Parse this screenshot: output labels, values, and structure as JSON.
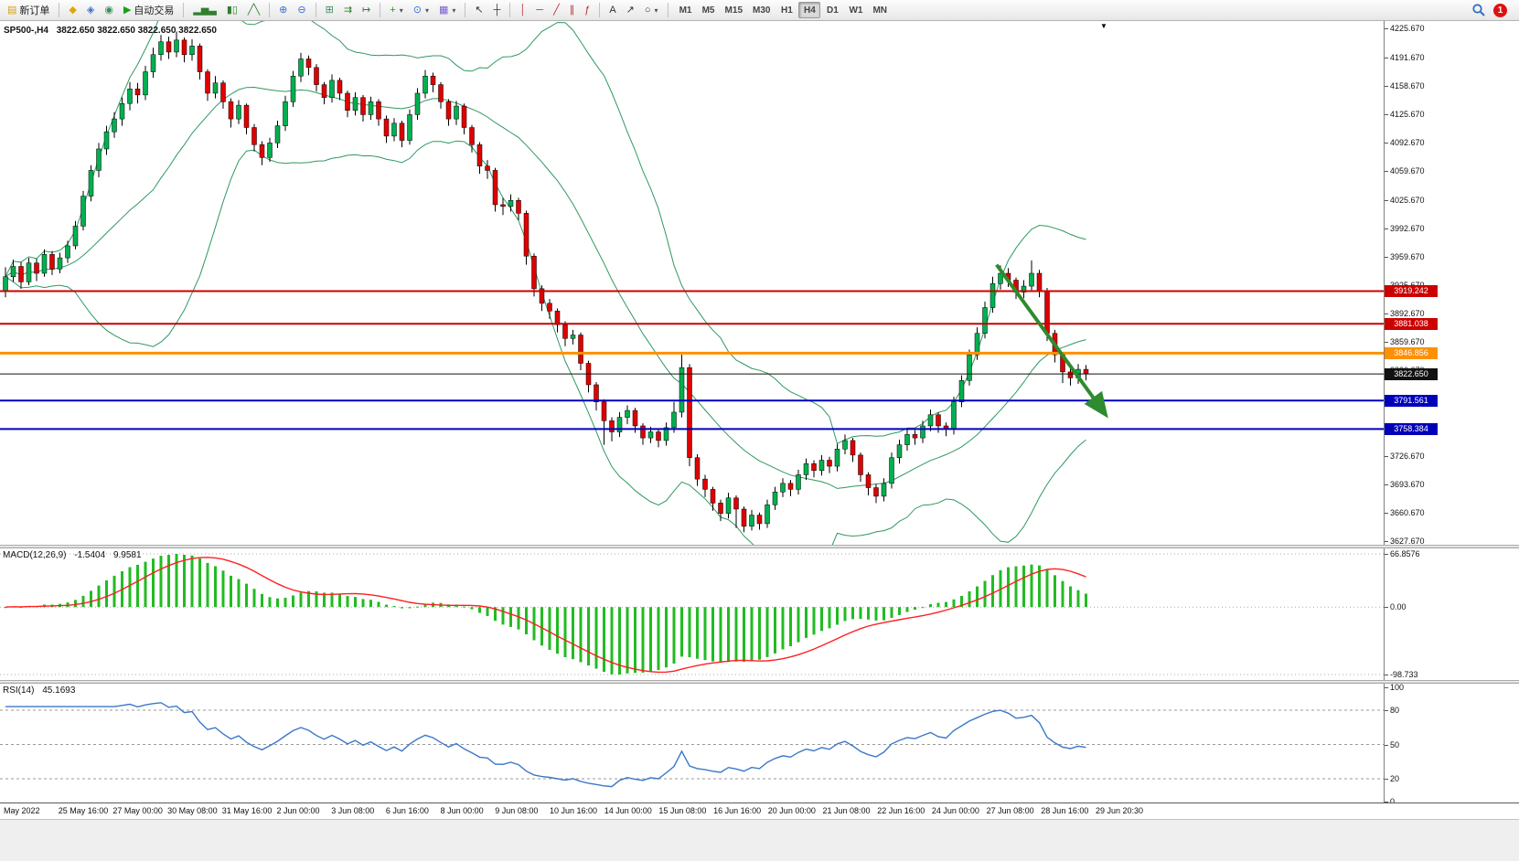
{
  "toolbar": {
    "items": [
      {
        "kind": "labeled",
        "name": "new-order-button",
        "icon_name": "new-order-icon",
        "glyph": "▤",
        "glyph_color": "#d8a018",
        "label": "新订单"
      },
      {
        "kind": "sep"
      },
      {
        "kind": "icon",
        "name": "market-watch-button",
        "icon_name": "market-watch-icon",
        "glyph": "◆",
        "glyph_color": "#e0a800"
      },
      {
        "kind": "icon",
        "name": "data-window-button",
        "icon_name": "data-window-icon",
        "glyph": "◈",
        "glyph_color": "#3a6fd0"
      },
      {
        "kind": "icon",
        "name": "navigator-button",
        "icon_name": "globe-icon",
        "glyph": "◉",
        "glyph_color": "#3a8f5f"
      },
      {
        "kind": "labeled",
        "name": "autotrading-button",
        "icon_name": "autotrading-play-icon",
        "glyph": "▶",
        "glyph_color": "#18a018",
        "label": "自动交易"
      },
      {
        "kind": "sep"
      },
      {
        "kind": "icon",
        "name": "bar-chart-button",
        "icon_name": "bars-icon",
        "glyph": "▂▅▃",
        "glyph_color": "#2f7f2f"
      },
      {
        "kind": "icon",
        "name": "candlestick-chart-button",
        "icon_name": "candles-icon",
        "glyph": "▮▯",
        "glyph_color": "#2f7f2f"
      },
      {
        "kind": "icon",
        "name": "line-chart-button",
        "icon_name": "line-chart-icon",
        "glyph": "╱╲",
        "glyph_color": "#2f7f2f"
      },
      {
        "kind": "sep"
      },
      {
        "kind": "icon",
        "name": "zoom-in-button",
        "icon_name": "zoom-in-icon",
        "glyph": "⊕",
        "glyph_color": "#3a6fd0"
      },
      {
        "kind": "icon",
        "name": "zoom-out-button",
        "icon_name": "zoom-out-icon",
        "glyph": "⊖",
        "glyph_color": "#3a6fd0"
      },
      {
        "kind": "sep"
      },
      {
        "kind": "icon",
        "name": "tile-windows-button",
        "icon_name": "tile-windows-icon",
        "glyph": "⊞",
        "glyph_color": "#3a8f5f"
      },
      {
        "kind": "icon",
        "name": "auto-scroll-button",
        "icon_name": "auto-scroll-icon",
        "glyph": "⇉",
        "glyph_color": "#2f7f2f"
      },
      {
        "kind": "icon",
        "name": "chart-shift-button",
        "icon_name": "chart-shift-icon",
        "glyph": "↦",
        "glyph_color": "#2f7f2f"
      },
      {
        "kind": "sep"
      },
      {
        "kind": "dropdown",
        "name": "indicators-button",
        "icon_name": "indicators-plus-icon",
        "glyph": "+",
        "glyph_color": "#18a018"
      },
      {
        "kind": "dropdown",
        "name": "periods-button",
        "icon_name": "clock-icon",
        "glyph": "⊙",
        "glyph_color": "#3a6fd0"
      },
      {
        "kind": "dropdown",
        "name": "templates-button",
        "icon_name": "template-icon",
        "glyph": "▦",
        "glyph_color": "#7a5fd0"
      },
      {
        "kind": "sep"
      },
      {
        "kind": "icon",
        "name": "cursor-button",
        "icon_name": "cursor-icon",
        "glyph": "↖",
        "glyph_color": "#333333"
      },
      {
        "kind": "icon",
        "name": "crosshair-button",
        "icon_name": "crosshair-icon",
        "glyph": "┼",
        "glyph_color": "#333333"
      },
      {
        "kind": "sep"
      },
      {
        "kind": "icon",
        "name": "vertical-line-button",
        "icon_name": "vertical-line-icon",
        "glyph": "│",
        "glyph_color": "#b03030"
      },
      {
        "kind": "icon",
        "name": "horizontal-line-button",
        "icon_name": "horizontal-line-icon",
        "glyph": "─",
        "glyph_color": "#b03030"
      },
      {
        "kind": "icon",
        "name": "trendline-button",
        "icon_name": "trendline-icon",
        "glyph": "╱",
        "glyph_color": "#b03030"
      },
      {
        "kind": "icon",
        "name": "channel-button",
        "icon_name": "channel-icon",
        "glyph": "∥",
        "glyph_color": "#b03030"
      },
      {
        "kind": "icon",
        "name": "fibonacci-button",
        "icon_name": "fibonacci-icon",
        "glyph": "ƒ",
        "glyph_color": "#b03030"
      },
      {
        "kind": "sep"
      },
      {
        "kind": "icon",
        "name": "text-tool-button",
        "icon_name": "text-icon",
        "glyph": "A",
        "glyph_color": "#333333"
      },
      {
        "kind": "icon",
        "name": "arrow-tool-button",
        "icon_name": "arrow-tool-icon",
        "glyph": "↗",
        "glyph_color": "#333333"
      },
      {
        "kind": "dropdown",
        "name": "shapes-button",
        "icon_name": "shapes-icon",
        "glyph": "○",
        "glyph_color": "#333333"
      },
      {
        "kind": "sep"
      }
    ],
    "timeframes": [
      "M1",
      "M5",
      "M15",
      "M30",
      "H1",
      "H4",
      "D1",
      "W1",
      "MN"
    ],
    "active_timeframe": "H4",
    "notification_count": "1"
  },
  "symbol_header": {
    "name": "SP500-,H4",
    "ohlc": "3822.650 3822.650 3822.650 3822.650"
  },
  "panels": {
    "macd": {
      "label": "MACD(12,26,9)",
      "value": "-1.5404",
      "signal_value": "9.9581",
      "scale": {
        "max": "66.8576",
        "zero": "0.00",
        "min": "-98.733"
      }
    },
    "rsi": {
      "label": "RSI(14)",
      "value": "45.1693"
    }
  },
  "chart_data": {
    "type": "candlestick",
    "symbol": "SP500-",
    "timeframe": "H4",
    "y_axis": {
      "max": 4225.67,
      "min": 3627.67,
      "ticks": [
        4225.67,
        4191.67,
        4158.67,
        4125.67,
        4092.67,
        4059.67,
        4025.67,
        3992.67,
        3959.67,
        3925.67,
        3892.67,
        3859.67,
        3826.67,
        3792.67,
        3759.67,
        3726.67,
        3693.67,
        3660.67,
        3627.67
      ]
    },
    "x_labels": [
      "May 2022",
      "25 May 16:00",
      "27 May 00:00",
      "30 May 08:00",
      "31 May 16:00",
      "2 Jun 00:00",
      "3 Jun 08:00",
      "6 Jun 16:00",
      "8 Jun 00:00",
      "9 Jun 08:00",
      "10 Jun 16:00",
      "14 Jun 00:00",
      "15 Jun 08:00",
      "16 Jun 16:00",
      "20 Jun 00:00",
      "21 Jun 08:00",
      "22 Jun 16:00",
      "24 Jun 00:00",
      "27 Jun 08:00",
      "28 Jun 16:00",
      "29 Jun 20:30"
    ],
    "ohlc": [
      [
        3920,
        3947,
        3912,
        3936
      ],
      [
        3936,
        3956,
        3930,
        3948
      ],
      [
        3948,
        3953,
        3922,
        3930
      ],
      [
        3930,
        3958,
        3926,
        3952
      ],
      [
        3952,
        3957,
        3931,
        3940
      ],
      [
        3940,
        3968,
        3936,
        3962
      ],
      [
        3962,
        3966,
        3938,
        3945
      ],
      [
        3945,
        3964,
        3940,
        3958
      ],
      [
        3958,
        3978,
        3952,
        3972
      ],
      [
        3972,
        4001,
        3968,
        3995
      ],
      [
        3995,
        4036,
        3990,
        4030
      ],
      [
        4030,
        4066,
        4024,
        4060
      ],
      [
        4060,
        4092,
        4052,
        4085
      ],
      [
        4085,
        4112,
        4078,
        4105
      ],
      [
        4105,
        4128,
        4098,
        4120
      ],
      [
        4120,
        4145,
        4112,
        4138
      ],
      [
        4138,
        4163,
        4130,
        4155
      ],
      [
        4155,
        4162,
        4138,
        4148
      ],
      [
        4148,
        4182,
        4142,
        4175
      ],
      [
        4175,
        4203,
        4168,
        4195
      ],
      [
        4195,
        4218,
        4188,
        4210
      ],
      [
        4210,
        4216,
        4190,
        4198
      ],
      [
        4198,
        4222,
        4192,
        4212
      ],
      [
        4212,
        4215,
        4186,
        4195
      ],
      [
        4195,
        4213,
        4188,
        4205
      ],
      [
        4205,
        4208,
        4166,
        4175
      ],
      [
        4175,
        4178,
        4141,
        4150
      ],
      [
        4150,
        4170,
        4144,
        4162
      ],
      [
        4162,
        4165,
        4132,
        4140
      ],
      [
        4140,
        4144,
        4110,
        4120
      ],
      [
        4120,
        4142,
        4114,
        4136
      ],
      [
        4136,
        4138,
        4102,
        4110
      ],
      [
        4110,
        4114,
        4082,
        4090
      ],
      [
        4090,
        4094,
        4066,
        4075
      ],
      [
        4075,
        4098,
        4070,
        4092
      ],
      [
        4092,
        4118,
        4086,
        4112
      ],
      [
        4112,
        4147,
        4106,
        4140
      ],
      [
        4140,
        4176,
        4134,
        4170
      ],
      [
        4170,
        4197,
        4163,
        4190
      ],
      [
        4190,
        4194,
        4171,
        4180
      ],
      [
        4180,
        4184,
        4152,
        4160
      ],
      [
        4160,
        4163,
        4137,
        4145
      ],
      [
        4145,
        4172,
        4139,
        4165
      ],
      [
        4165,
        4168,
        4142,
        4150
      ],
      [
        4150,
        4153,
        4122,
        4130
      ],
      [
        4130,
        4151,
        4124,
        4145
      ],
      [
        4145,
        4148,
        4117,
        4125
      ],
      [
        4125,
        4146,
        4119,
        4140
      ],
      [
        4140,
        4143,
        4112,
        4120
      ],
      [
        4120,
        4124,
        4092,
        4100
      ],
      [
        4100,
        4121,
        4094,
        4115
      ],
      [
        4115,
        4118,
        4087,
        4095
      ],
      [
        4095,
        4131,
        4090,
        4125
      ],
      [
        4125,
        4156,
        4119,
        4150
      ],
      [
        4150,
        4177,
        4144,
        4170
      ],
      [
        4170,
        4174,
        4151,
        4160
      ],
      [
        4160,
        4163,
        4132,
        4140
      ],
      [
        4140,
        4143,
        4112,
        4120
      ],
      [
        4120,
        4141,
        4113,
        4135
      ],
      [
        4135,
        4138,
        4102,
        4110
      ],
      [
        4110,
        4113,
        4081,
        4090
      ],
      [
        4090,
        4093,
        4056,
        4065
      ],
      [
        4065,
        4072,
        4050,
        4060
      ],
      [
        4060,
        4063,
        4012,
        4020
      ],
      [
        4020,
        4028,
        4008,
        4018
      ],
      [
        4018,
        4032,
        4012,
        4025
      ],
      [
        4025,
        4028,
        4002,
        4010
      ],
      [
        4010,
        4013,
        3950,
        3960
      ],
      [
        3960,
        3963,
        3913,
        3922
      ],
      [
        3922,
        3926,
        3896,
        3905
      ],
      [
        3905,
        3910,
        3887,
        3896
      ],
      [
        3896,
        3899,
        3871,
        3880
      ],
      [
        3880,
        3884,
        3855,
        3864
      ],
      [
        3864,
        3874,
        3857,
        3868
      ],
      [
        3868,
        3871,
        3827,
        3835
      ],
      [
        3835,
        3838,
        3801,
        3810
      ],
      [
        3810,
        3813,
        3780,
        3790
      ],
      [
        3790,
        3793,
        3740,
        3768
      ],
      [
        3768,
        3772,
        3744,
        3755
      ],
      [
        3755,
        3778,
        3749,
        3772
      ],
      [
        3772,
        3786,
        3764,
        3780
      ],
      [
        3780,
        3783,
        3754,
        3762
      ],
      [
        3762,
        3765,
        3740,
        3748
      ],
      [
        3748,
        3761,
        3742,
        3755
      ],
      [
        3755,
        3758,
        3737,
        3745
      ],
      [
        3745,
        3766,
        3739,
        3760
      ],
      [
        3760,
        3790,
        3754,
        3778
      ],
      [
        3778,
        3845,
        3772,
        3830
      ],
      [
        3830,
        3834,
        3715,
        3725
      ],
      [
        3725,
        3729,
        3692,
        3700
      ],
      [
        3700,
        3705,
        3679,
        3688
      ],
      [
        3688,
        3691,
        3663,
        3672
      ],
      [
        3672,
        3676,
        3651,
        3660
      ],
      [
        3660,
        3684,
        3654,
        3678
      ],
      [
        3678,
        3681,
        3643,
        3665
      ],
      [
        3665,
        3668,
        3638,
        3645
      ],
      [
        3645,
        3664,
        3640,
        3658
      ],
      [
        3658,
        3661,
        3641,
        3648
      ],
      [
        3648,
        3676,
        3643,
        3670
      ],
      [
        3670,
        3691,
        3664,
        3685
      ],
      [
        3685,
        3701,
        3679,
        3695
      ],
      [
        3695,
        3699,
        3680,
        3688
      ],
      [
        3688,
        3711,
        3682,
        3705
      ],
      [
        3705,
        3724,
        3699,
        3718
      ],
      [
        3718,
        3722,
        3702,
        3710
      ],
      [
        3710,
        3728,
        3704,
        3722
      ],
      [
        3722,
        3726,
        3707,
        3715
      ],
      [
        3715,
        3741,
        3709,
        3735
      ],
      [
        3735,
        3752,
        3729,
        3745
      ],
      [
        3745,
        3748,
        3720,
        3728
      ],
      [
        3728,
        3731,
        3697,
        3705
      ],
      [
        3705,
        3708,
        3681,
        3690
      ],
      [
        3690,
        3694,
        3672,
        3680
      ],
      [
        3680,
        3701,
        3674,
        3695
      ],
      [
        3695,
        3731,
        3689,
        3725
      ],
      [
        3725,
        3746,
        3718,
        3740
      ],
      [
        3740,
        3758,
        3733,
        3752
      ],
      [
        3752,
        3757,
        3740,
        3748
      ],
      [
        3748,
        3768,
        3742,
        3762
      ],
      [
        3762,
        3781,
        3756,
        3775
      ],
      [
        3775,
        3778,
        3754,
        3762
      ],
      [
        3762,
        3766,
        3750,
        3758
      ],
      [
        3758,
        3796,
        3752,
        3790
      ],
      [
        3790,
        3821,
        3784,
        3815
      ],
      [
        3815,
        3851,
        3809,
        3845
      ],
      [
        3845,
        3877,
        3839,
        3870
      ],
      [
        3870,
        3907,
        3864,
        3900
      ],
      [
        3900,
        3936,
        3894,
        3928
      ],
      [
        3928,
        3949,
        3921,
        3940
      ],
      [
        3940,
        3946,
        3924,
        3932
      ],
      [
        3932,
        3935,
        3910,
        3918
      ],
      [
        3918,
        3932,
        3911,
        3925
      ],
      [
        3925,
        3955,
        3919,
        3940
      ],
      [
        3940,
        3944,
        3912,
        3920
      ],
      [
        3920,
        3923,
        3861,
        3870
      ],
      [
        3870,
        3874,
        3836,
        3845
      ],
      [
        3845,
        3848,
        3812,
        3825
      ],
      [
        3825,
        3830,
        3809,
        3818
      ],
      [
        3818,
        3834,
        3811,
        3828
      ],
      [
        3828,
        3833,
        3815,
        3822.65
      ]
    ],
    "candle_colors": {
      "up": "#00b050",
      "down": "#e00000",
      "wick": "#000000"
    },
    "bollinger": {
      "period": 20,
      "deviation": 2,
      "color": "#2e9960"
    },
    "macd": {
      "fast": 12,
      "slow": 26,
      "signal": 9,
      "hist_color": "#22bb22",
      "signal_color": "#ff2020"
    },
    "rsi": {
      "period": 14,
      "color": "#3b78c8",
      "levels": [
        80,
        50,
        20
      ],
      "scale_labels": [
        "100",
        "80",
        "50",
        "20",
        "0"
      ]
    },
    "hlines": [
      {
        "price": 3919.242,
        "label": "3919.242",
        "color": "#cc0000",
        "width": 2
      },
      {
        "price": 3881.038,
        "label": "3881.038",
        "color": "#cc0000",
        "width": 2
      },
      {
        "price": 3846.856,
        "label": "3846.856",
        "color": "#ff9000",
        "width": 3
      },
      {
        "price": 3822.65,
        "label": "3822.650",
        "color": "#111111",
        "width": 1
      },
      {
        "price": 3791.561,
        "label": "3791.561",
        "color": "#0000bb",
        "width": 2
      },
      {
        "price": 3758.384,
        "label": "3758.384",
        "color": "#0000bb",
        "width": 2
      }
    ],
    "trend_arrow": {
      "from_index": 127.5,
      "from_price": 3950,
      "to_index": 141.3,
      "to_price": 3778,
      "color": "#2e8b2e"
    },
    "shift_marker_glyph": "▼"
  }
}
